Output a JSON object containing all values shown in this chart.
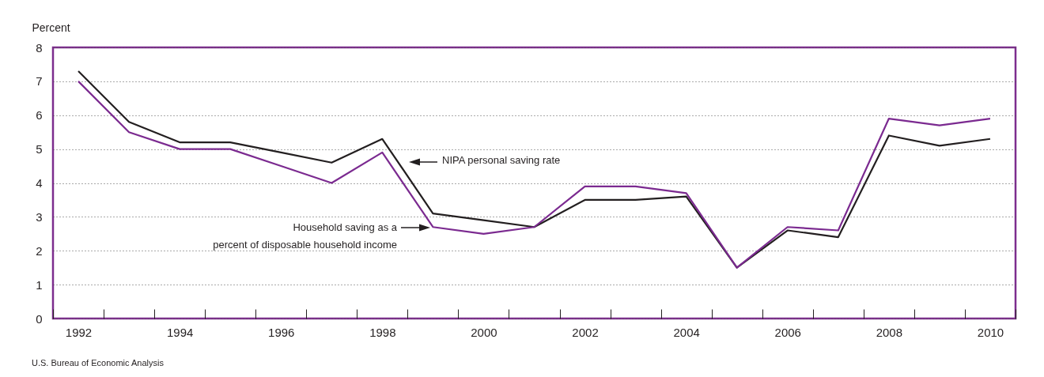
{
  "chart_data": {
    "type": "line",
    "ylabel": "Percent",
    "categories": [
      "1992",
      null,
      "1994",
      null,
      "1996",
      null,
      "1998",
      null,
      "2000",
      null,
      "2002",
      null,
      "2004",
      null,
      "2006",
      null,
      "2008",
      null,
      "2010"
    ],
    "series": [
      {
        "name": "NIPA personal saving rate",
        "color": "#231f20",
        "values": [
          7.3,
          5.8,
          5.2,
          5.2,
          4.9,
          4.6,
          5.3,
          3.1,
          2.9,
          2.7,
          3.5,
          3.5,
          3.6,
          1.5,
          2.6,
          2.4,
          5.4,
          5.1,
          5.3
        ]
      },
      {
        "name": "Household saving as a\npercent of disposable household income",
        "color": "#7b2a90",
        "values": [
          7.0,
          5.5,
          5.0,
          5.0,
          4.5,
          4.0,
          4.9,
          2.7,
          2.5,
          2.7,
          3.9,
          3.9,
          3.7,
          1.5,
          2.7,
          2.6,
          5.9,
          5.7,
          5.9
        ]
      }
    ],
    "ylim": [
      0,
      8
    ],
    "yticks": [
      0,
      1,
      2,
      3,
      4,
      5,
      6,
      7,
      8
    ],
    "grid": "y",
    "marker": "none",
    "line_style": "solid",
    "annotations": [
      "U.S. Bureau of Economic Analysis"
    ]
  }
}
